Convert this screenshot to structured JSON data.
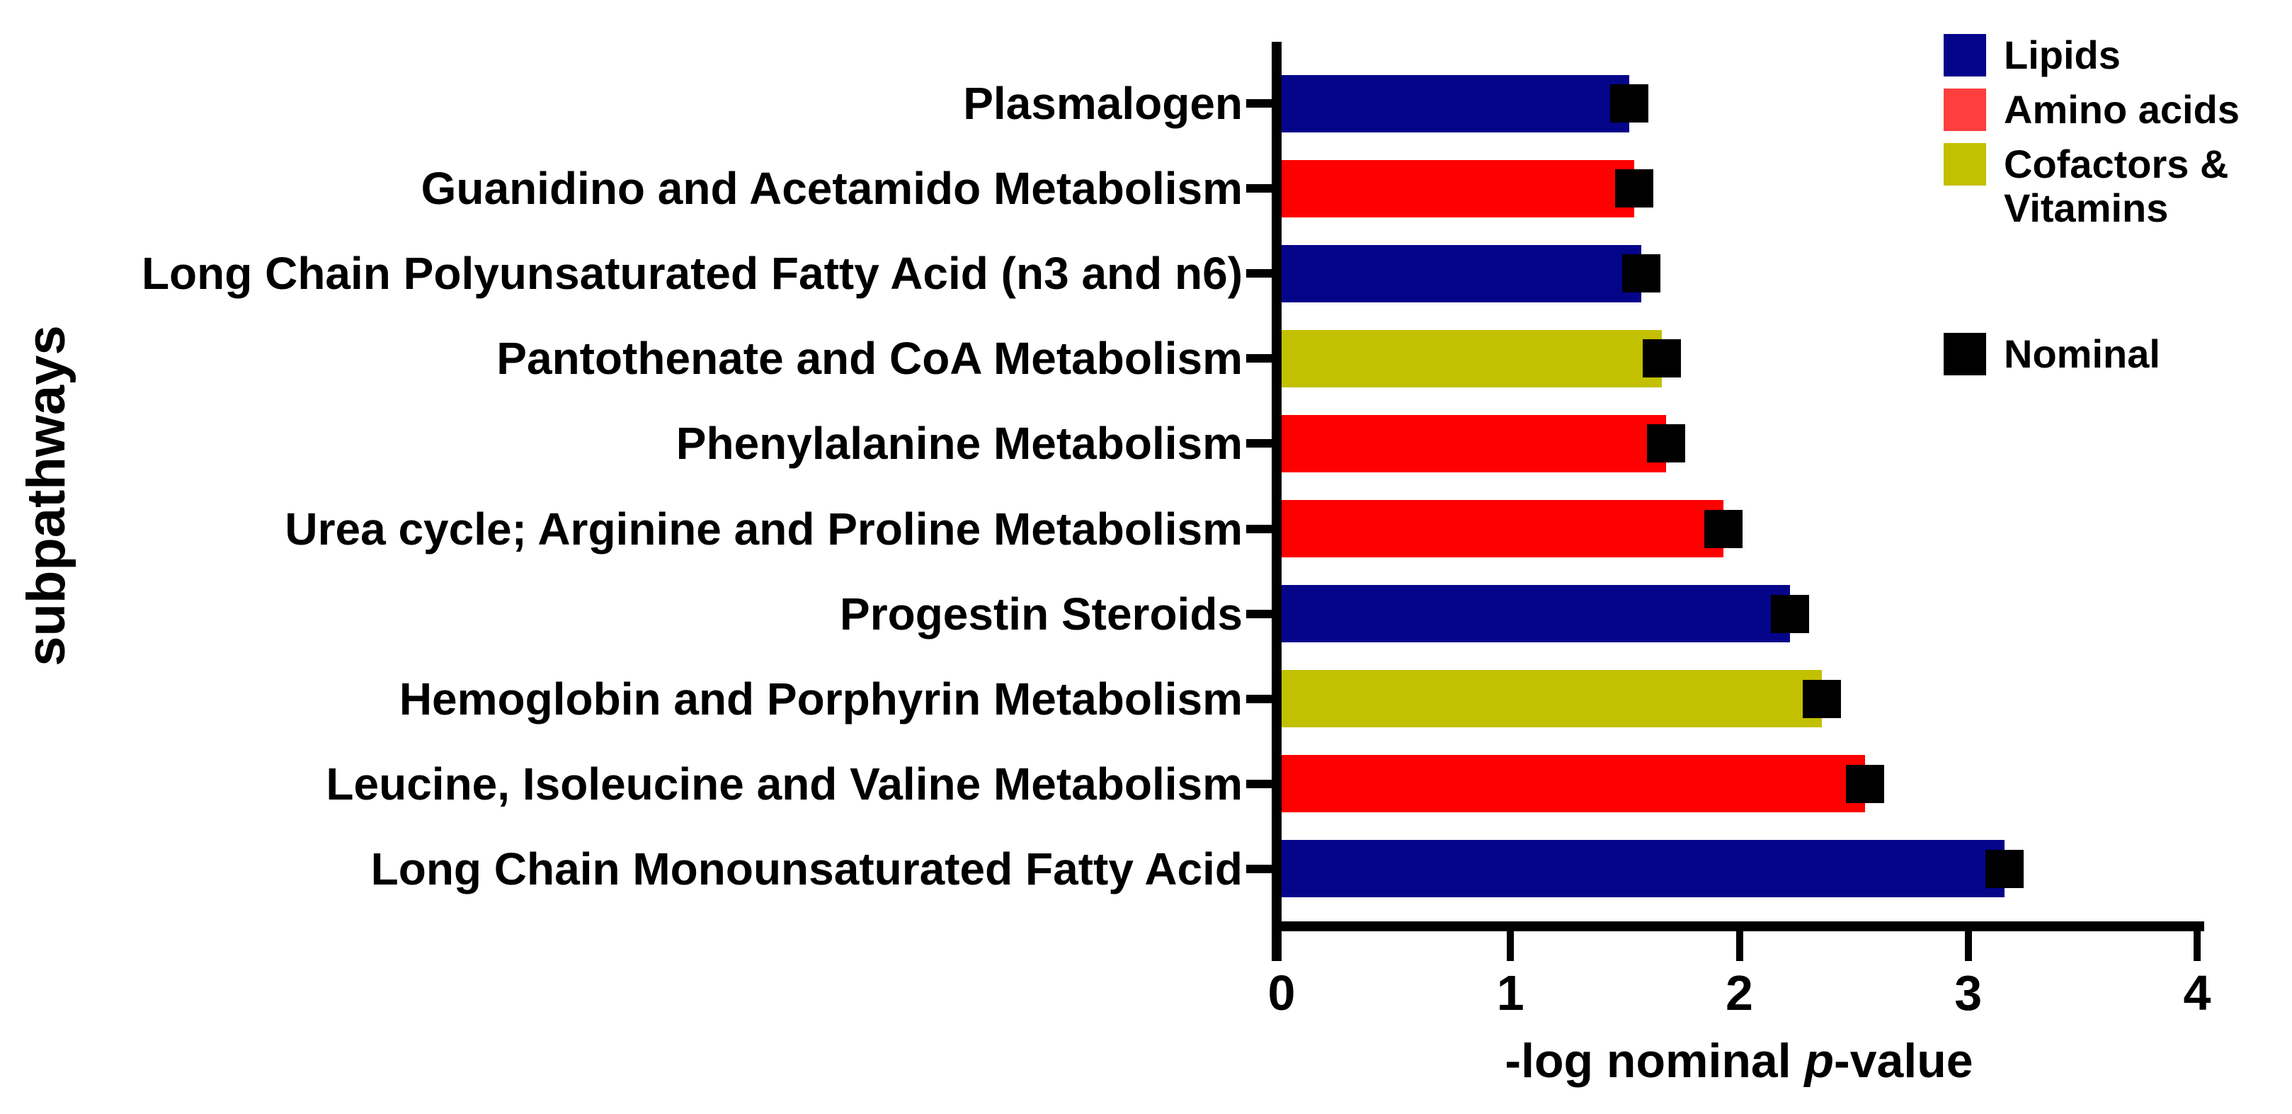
{
  "figure": {
    "background": "#FFFFFF",
    "xlabel": "-log nominal p-value",
    "xlabel_parts": {
      "prefix": "-log nominal ",
      "italic": "p",
      "suffix": "-value"
    },
    "ylabel": "subpathways"
  },
  "chart_data": {
    "type": "bar",
    "orientation": "horizontal",
    "title": "",
    "xlabel": "-log nominal p-value",
    "ylabel": "subpathways",
    "xlim": [
      0,
      4
    ],
    "x_ticks": [
      "0",
      "1",
      "2",
      "3",
      "4"
    ],
    "grid": false,
    "legend_position": "top-right",
    "categories": [
      "Plasmalogen",
      "Guanidino and Acetamido Metabolism",
      "Long Chain Polyunsaturated Fatty Acid (n3 and n6)",
      "Pantothenate and CoA Metabolism",
      "Phenylalanine Metabolism",
      "Urea cycle; Arginine and Proline Metabolism",
      "Progestin Steroids",
      "Hemoglobin and Porphyrin Metabolism",
      "Leucine, Isoleucine and Valine Metabolism",
      "Long Chain Monounsaturated Fatty Acid"
    ],
    "values": [
      1.52,
      1.54,
      1.57,
      1.66,
      1.68,
      1.93,
      2.22,
      2.36,
      2.55,
      3.16
    ],
    "bar_groups": [
      "Lipids",
      "Amino acids",
      "Lipids",
      "Cofactors & Vitamins",
      "Amino acids",
      "Amino acids",
      "Lipids",
      "Cofactors & Vitamins",
      "Amino acids",
      "Lipids"
    ],
    "group_colors": {
      "Lipids": "#05058A",
      "Amino acids": "#FF0000",
      "Cofactors & Vitamins": "#C2C000"
    },
    "legend": [
      {
        "label": "Lipids",
        "color": "#05058A"
      },
      {
        "label": "Amino acids",
        "color": "#FF3E3E"
      },
      {
        "label": "Cofactors & Vitamins",
        "color": "#C2C000"
      }
    ],
    "marker_legend": {
      "label": "Nominal",
      "color": "#000000",
      "shape": "square"
    }
  }
}
